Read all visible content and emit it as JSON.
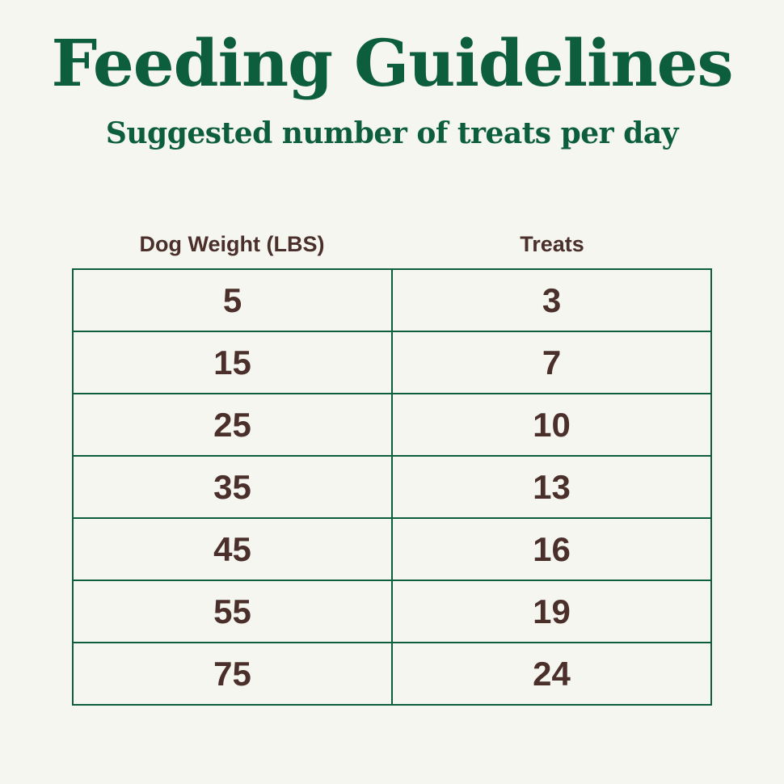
{
  "title": "Feeding Guidelines",
  "subtitle": "Suggested number of treats per day",
  "table": {
    "headers": [
      "Dog Weight (LBS)",
      "Treats"
    ],
    "rows": [
      [
        "5",
        "3"
      ],
      [
        "15",
        "7"
      ],
      [
        "25",
        "10"
      ],
      [
        "35",
        "13"
      ],
      [
        "45",
        "16"
      ],
      [
        "55",
        "19"
      ],
      [
        "75",
        "24"
      ]
    ]
  },
  "colors": {
    "background": "#f6f6f1",
    "brand_green": "#0d5e3c",
    "text_brown": "#4a2f2a"
  }
}
